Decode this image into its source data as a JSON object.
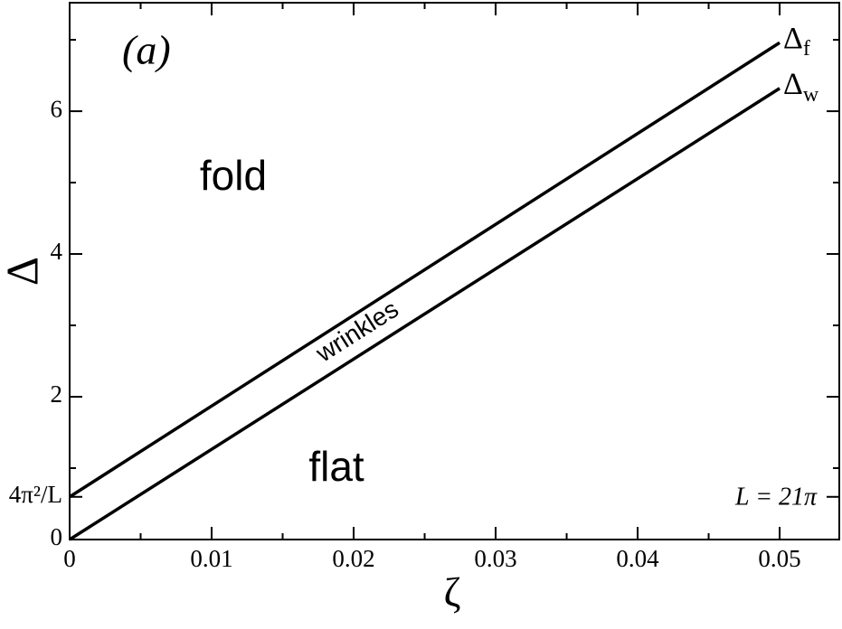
{
  "chart_data": {
    "type": "line",
    "xlabel": "ζ",
    "ylabel": "Δ",
    "xlim": [
      0,
      0.0542
    ],
    "ylim": [
      0,
      7.52
    ],
    "xticks": [
      0,
      0.01,
      0.02,
      0.03,
      0.04,
      0.05
    ],
    "yticks": [
      0,
      {
        "value": 0.598,
        "label": "4π²/L"
      },
      2,
      4,
      6
    ],
    "xminorticks": [
      0.005,
      0.015,
      0.025,
      0.035,
      0.045
    ],
    "yminorticks": [
      1,
      3,
      5,
      7
    ],
    "series": [
      {
        "name": "Δf",
        "color": "#000000",
        "x": [
          0,
          0.05
        ],
        "values": [
          0.598,
          6.96
        ]
      },
      {
        "name": "Δw",
        "color": "#000000",
        "x": [
          0,
          0.05
        ],
        "values": [
          0,
          6.32
        ]
      }
    ],
    "annotations": [
      "(a)",
      "fold",
      "flat",
      "wrinkles",
      "L = 21π"
    ]
  }
}
